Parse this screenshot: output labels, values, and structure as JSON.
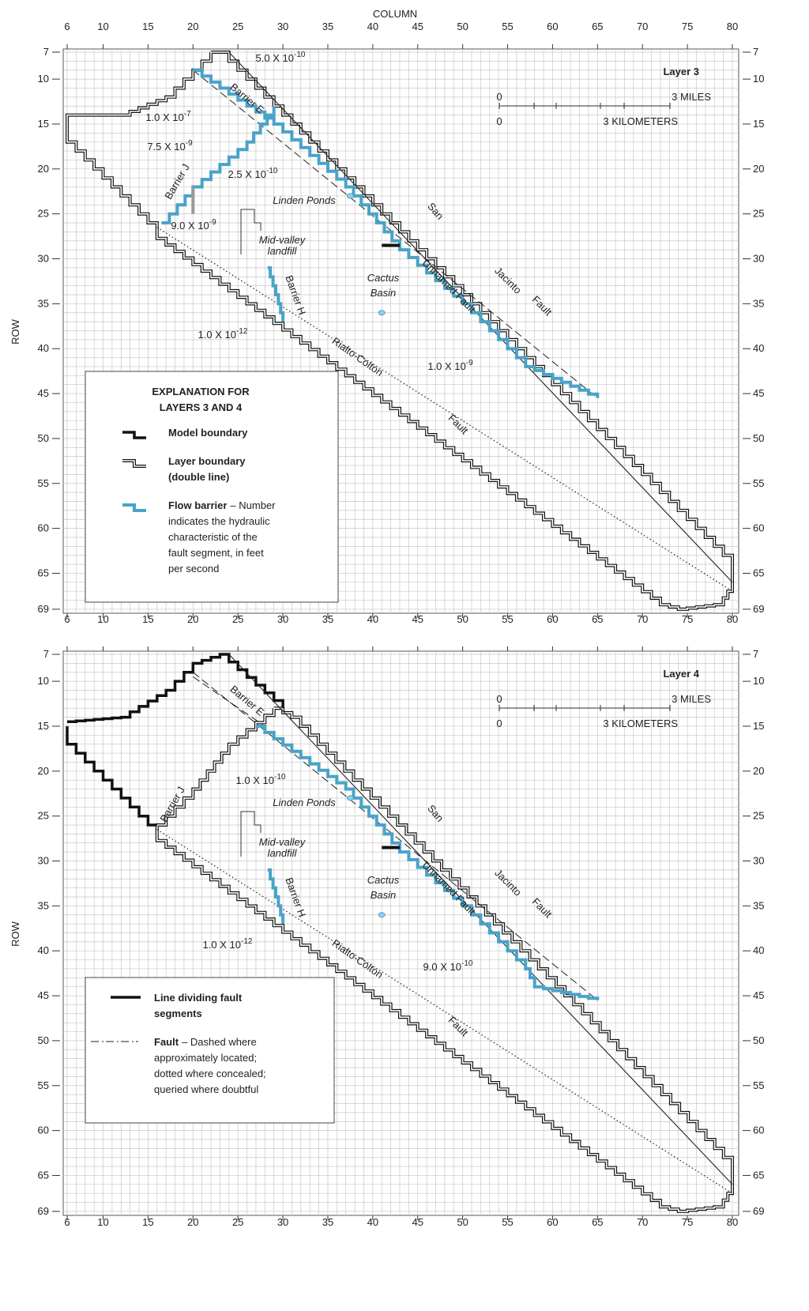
{
  "column_title": "COLUMN",
  "row_title": "ROW",
  "column_ticks": [
    6,
    10,
    15,
    20,
    25,
    30,
    35,
    40,
    45,
    50,
    55,
    60,
    65,
    70,
    75,
    80
  ],
  "row_ticks": [
    7,
    10,
    15,
    20,
    25,
    30,
    35,
    40,
    45,
    50,
    55,
    60,
    65,
    69
  ],
  "panels": [
    {
      "title": "Layer 3",
      "scale": {
        "zero_miles": "0",
        "miles": "3 MILES",
        "zero_km": "0",
        "kilometers": "3 KILOMETERS"
      },
      "features": [
        "Barrier E",
        "Barrier J",
        "Barrier H",
        "San",
        "Jacinto",
        "Fault",
        "Unnamed Fault",
        "Rialto-Colton",
        "Fault",
        "Linden Ponds",
        "Cactus",
        "Basin",
        "Mid-valley",
        "landfill"
      ],
      "values": [
        {
          "base": "5.0 X 10",
          "exp": "-10"
        },
        {
          "base": "1.0 X 10",
          "exp": "-7"
        },
        {
          "base": "7.5 X 10",
          "exp": "-9"
        },
        {
          "base": "2.5 X 10",
          "exp": "-10"
        },
        {
          "base": "9.0 X 10",
          "exp": "-9"
        },
        {
          "base": "1.0 X 10",
          "exp": "-12"
        },
        {
          "base": "1.0 X 10",
          "exp": "-9"
        }
      ],
      "legend": {
        "title": [
          "EXPLANATION FOR",
          "LAYERS 3 AND 4"
        ],
        "items": [
          {
            "term": [
              "Model boundary"
            ],
            "desc": []
          },
          {
            "term": [
              "Layer boundary",
              "(double line)"
            ],
            "desc": []
          },
          {
            "term": [
              "Flow barrier"
            ],
            "desc": [
              "– Number",
              "indicates the hydraulic",
              "characteristic of the",
              "fault segment, in feet",
              "per second"
            ]
          }
        ]
      }
    },
    {
      "title": "Layer 4",
      "scale": {
        "zero_miles": "0",
        "miles": "3 MILES",
        "zero_km": "0",
        "kilometers": "3 KILOMETERS"
      },
      "features": [
        "Barrier E",
        "Barrier J",
        "Barrier H",
        "San",
        "Jacinto",
        "Fault",
        "Unnamed Fault",
        "Rialto-Colton",
        "Fault",
        "Linden Ponds",
        "Cactus",
        "Basin",
        "Mid-valley",
        "landfill"
      ],
      "values": [
        {
          "base": "1.0 X 10",
          "exp": "-10"
        },
        {
          "base": "1.0 X 10",
          "exp": "-12"
        },
        {
          "base": "9.0 X 10",
          "exp": "-10"
        }
      ],
      "legend": {
        "title": [],
        "items": [
          {
            "term": [
              "Line dividing fault",
              "segments"
            ],
            "desc": []
          },
          {
            "term": [
              "Fault"
            ],
            "desc": [
              "– Dashed where",
              "approximately located;",
              "dotted where concealed;",
              "queried where doubtful"
            ]
          }
        ]
      }
    }
  ]
}
